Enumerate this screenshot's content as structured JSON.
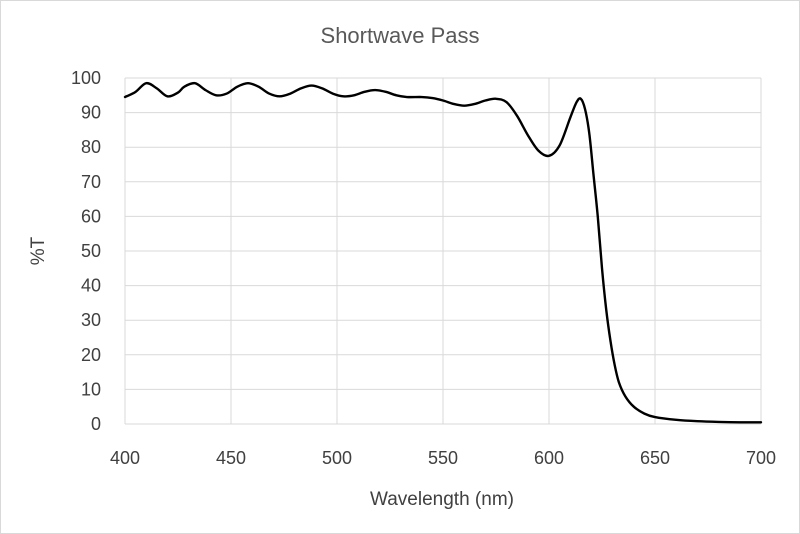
{
  "chart_data": {
    "type": "line",
    "title": "Shortwave Pass",
    "xlabel": "Wavelength (nm)",
    "ylabel": "%T",
    "xlim": [
      400,
      700
    ],
    "ylim": [
      0,
      100
    ],
    "x_ticks": [
      "400",
      "450",
      "500",
      "550",
      "600",
      "650",
      "700"
    ],
    "y_ticks": [
      "0",
      "10",
      "20",
      "30",
      "40",
      "50",
      "60",
      "70",
      "80",
      "90",
      "100"
    ],
    "grid": true,
    "legend": "none",
    "series": [
      {
        "color": "#000000",
        "points": [
          [
            400,
            94.5
          ],
          [
            405,
            96
          ],
          [
            410,
            98.5
          ],
          [
            415,
            97
          ],
          [
            420,
            94.7
          ],
          [
            425,
            95.8
          ],
          [
            428,
            97.5
          ],
          [
            433,
            98.5
          ],
          [
            438,
            96.5
          ],
          [
            443,
            95
          ],
          [
            448,
            95.5
          ],
          [
            453,
            97.5
          ],
          [
            458,
            98.5
          ],
          [
            463,
            97.5
          ],
          [
            468,
            95.5
          ],
          [
            473,
            94.7
          ],
          [
            478,
            95.5
          ],
          [
            483,
            97
          ],
          [
            488,
            97.8
          ],
          [
            493,
            97
          ],
          [
            498,
            95.5
          ],
          [
            503,
            94.7
          ],
          [
            508,
            95
          ],
          [
            513,
            96
          ],
          [
            518,
            96.5
          ],
          [
            523,
            96
          ],
          [
            528,
            95
          ],
          [
            533,
            94.5
          ],
          [
            540,
            94.5
          ],
          [
            545,
            94.2
          ],
          [
            550,
            93.5
          ],
          [
            555,
            92.5
          ],
          [
            560,
            92
          ],
          [
            565,
            92.5
          ],
          [
            570,
            93.5
          ],
          [
            575,
            94
          ],
          [
            580,
            93
          ],
          [
            585,
            89
          ],
          [
            590,
            83.5
          ],
          [
            595,
            79
          ],
          [
            600,
            77.5
          ],
          [
            605,
            80.5
          ],
          [
            610,
            88.5
          ],
          [
            613,
            93
          ],
          [
            615,
            94
          ],
          [
            617,
            91
          ],
          [
            619,
            84
          ],
          [
            621,
            72
          ],
          [
            623,
            60
          ],
          [
            625,
            45
          ],
          [
            627,
            33
          ],
          [
            629,
            24
          ],
          [
            631,
            17
          ],
          [
            633,
            12
          ],
          [
            636,
            8
          ],
          [
            640,
            5
          ],
          [
            645,
            3
          ],
          [
            650,
            2
          ],
          [
            660,
            1.2
          ],
          [
            670,
            0.8
          ],
          [
            680,
            0.6
          ],
          [
            690,
            0.5
          ],
          [
            700,
            0.5
          ]
        ]
      }
    ]
  }
}
